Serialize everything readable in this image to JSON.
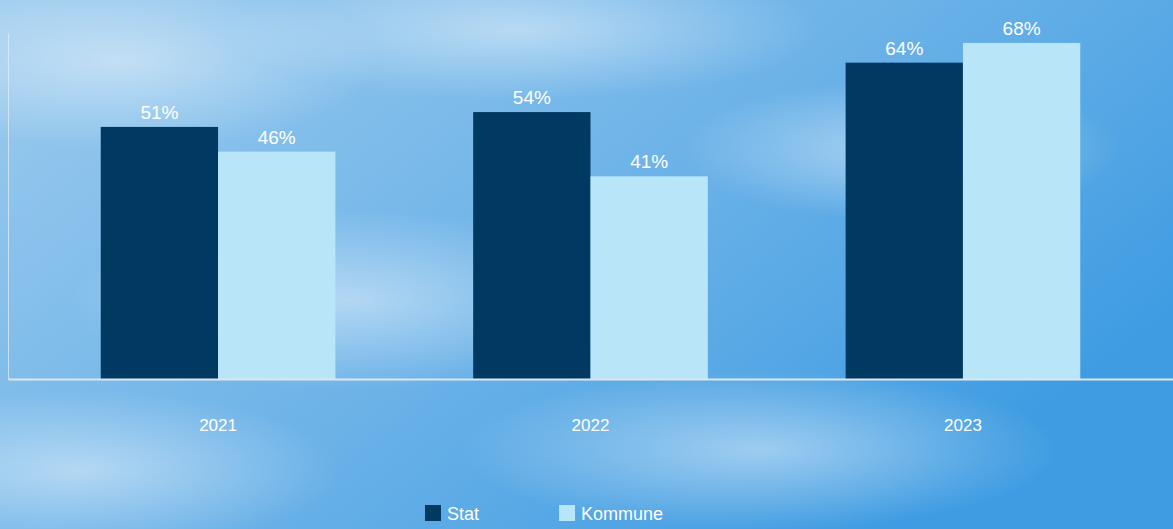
{
  "chart_data": {
    "type": "bar",
    "categories": [
      "2021",
      "2022",
      "2023"
    ],
    "series": [
      {
        "name": "Stat",
        "color": "#003a63",
        "values": [
          51,
          54,
          64
        ],
        "value_labels": [
          "51%",
          "54%",
          "64%"
        ]
      },
      {
        "name": "Kommune",
        "color": "#b9e5f8",
        "values": [
          46,
          41,
          68
        ],
        "value_labels": [
          "46%",
          "41%",
          "68%"
        ]
      }
    ],
    "ylim": [
      0,
      70
    ],
    "grid": false,
    "data_labels": true,
    "tick_labels": "x",
    "legend": "bottom"
  }
}
